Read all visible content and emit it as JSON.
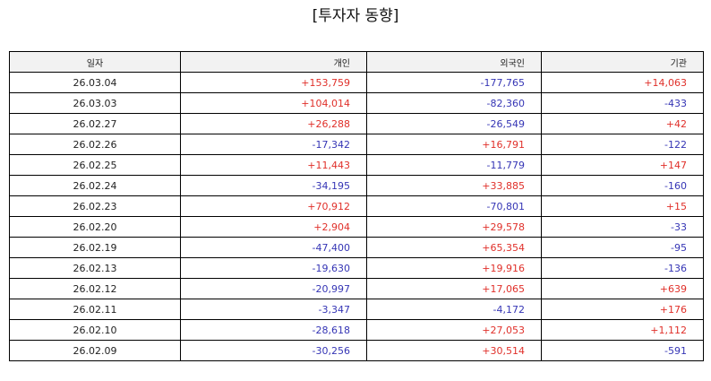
{
  "title": "[투자자 동향]",
  "table": {
    "headers": [
      "일자",
      "개인",
      "외국인",
      "기관"
    ],
    "rows": [
      [
        "26.03.04",
        "+153,759",
        "-177,765",
        "+14,063"
      ],
      [
        "26.03.03",
        "+104,014",
        "-82,360",
        "-433"
      ],
      [
        "26.02.27",
        "+26,288",
        "-26,549",
        "+42"
      ],
      [
        "26.02.26",
        "-17,342",
        "+16,791",
        "-122"
      ],
      [
        "26.02.25",
        "+11,443",
        "-11,779",
        "+147"
      ],
      [
        "26.02.24",
        "-34,195",
        "+33,885",
        "-160"
      ],
      [
        "26.02.23",
        "+70,912",
        "-70,801",
        "+15"
      ],
      [
        "26.02.20",
        "+2,904",
        "+29,578",
        "-33"
      ],
      [
        "26.02.19",
        "-47,400",
        "+65,354",
        "-95"
      ],
      [
        "26.02.13",
        "-19,630",
        "+19,916",
        "-136"
      ],
      [
        "26.02.12",
        "-20,997",
        "+17,065",
        "+639"
      ],
      [
        "26.02.11",
        "-3,347",
        "-4,172",
        "+176"
      ],
      [
        "26.02.10",
        "-28,618",
        "+27,053",
        "+1,112"
      ],
      [
        "26.02.09",
        "-30,256",
        "+30,514",
        "-591"
      ]
    ]
  },
  "colors": {
    "positive": "#e0302a",
    "negative": "#3535b5",
    "header_bg": "#f2f2f2",
    "border": "#000000"
  }
}
